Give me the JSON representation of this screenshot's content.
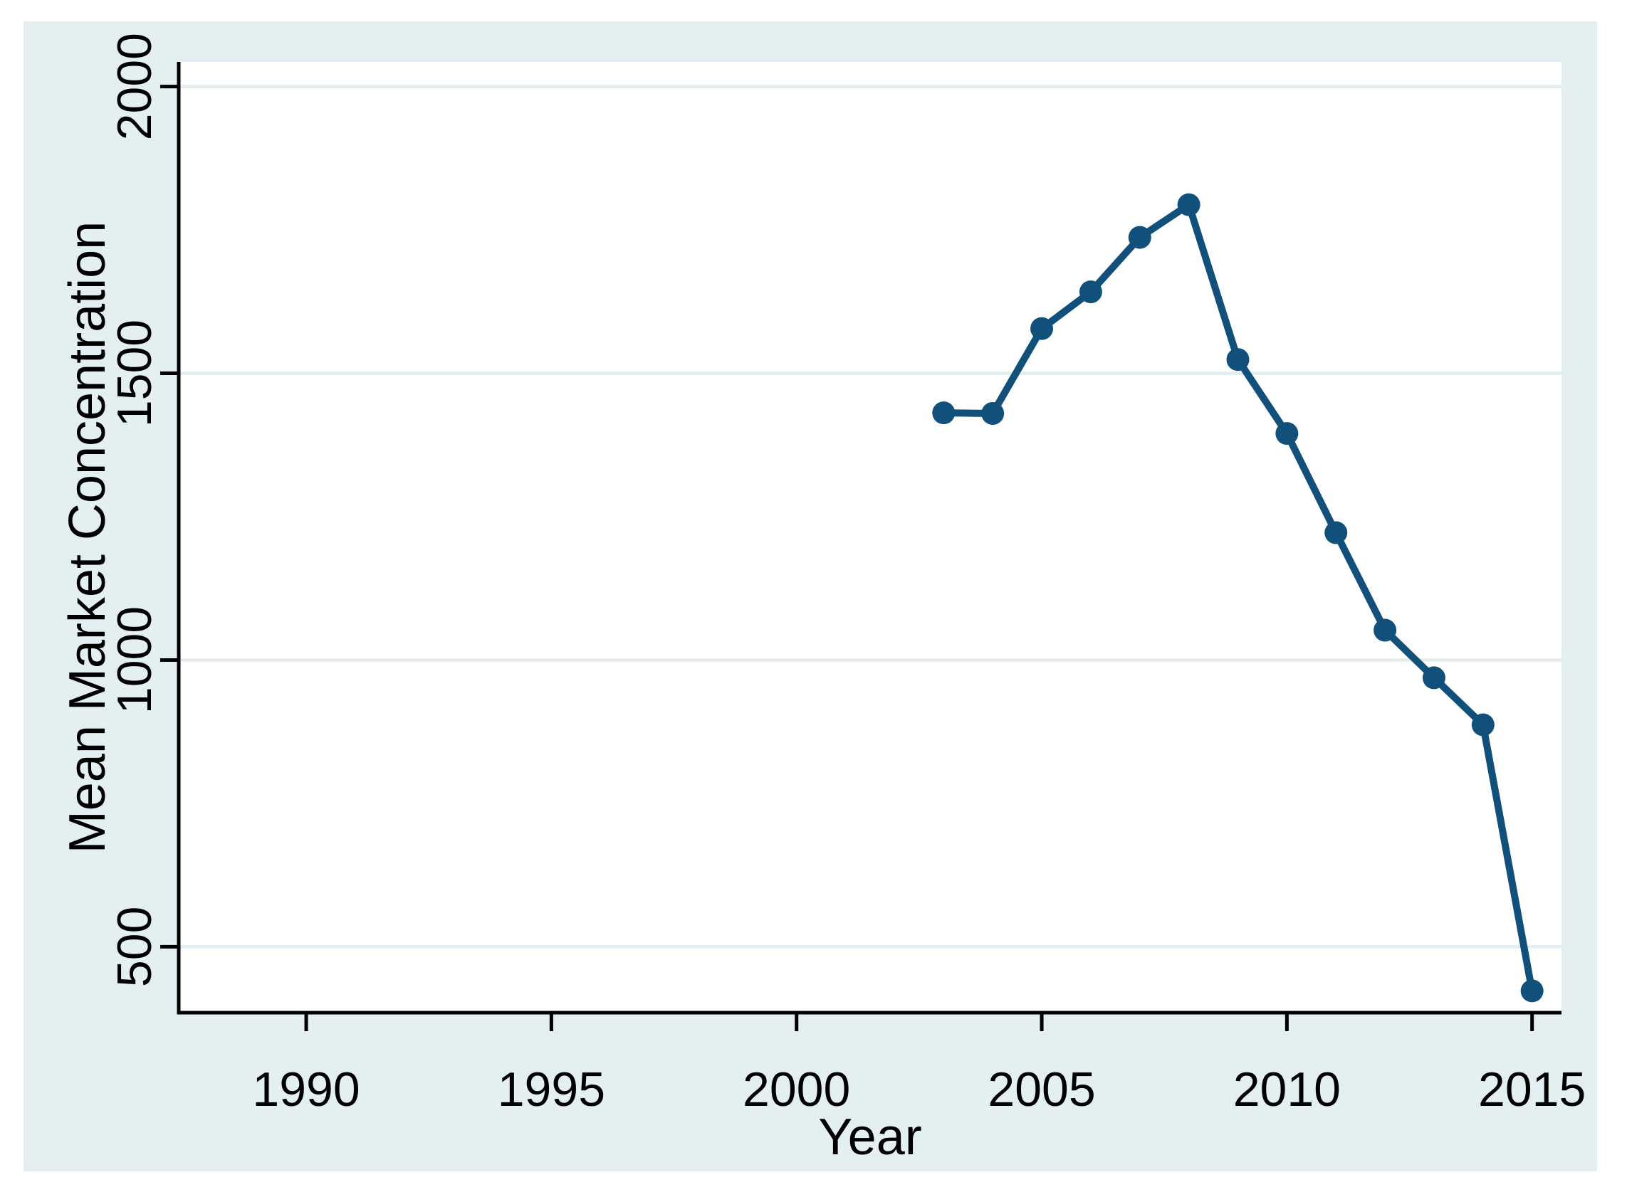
{
  "figure": {
    "background_color": "#e4eff1",
    "plot_background_color": "#ffffff",
    "gridline_color": "#e1edef",
    "axis_color": "#000000",
    "series_color": "#11507a"
  },
  "chart_data": {
    "type": "line",
    "title": "",
    "xlabel": "Year",
    "ylabel": "Mean Market Concentration",
    "series": [
      {
        "name": "Mean Market Concentration",
        "x": [
          2003,
          2004,
          2005,
          2006,
          2007,
          2008,
          2009,
          2010,
          2011,
          2012,
          2013,
          2014,
          2015
        ],
        "values": [
          1431,
          1430,
          1578,
          1642,
          1737,
          1794,
          1524,
          1395,
          1222,
          1052,
          969,
          887,
          423
        ]
      }
    ],
    "x_ticks": [
      1990,
      1995,
      2000,
      2005,
      2010,
      2015
    ],
    "y_ticks": [
      500,
      1000,
      1500,
      2000
    ],
    "xlim": [
      1987.4,
      2015.6
    ],
    "ylim": [
      385,
      2043
    ],
    "grid": "horizontal-only",
    "legend": "none",
    "marker": "filled-circle",
    "line_style": "solid"
  }
}
